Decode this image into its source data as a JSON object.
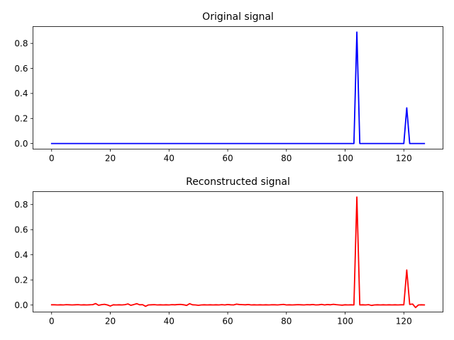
{
  "chart_data": [
    {
      "type": "line",
      "title": "Original signal",
      "xlabel": "",
      "ylabel": "",
      "xlim": [
        -6.35,
        133.35
      ],
      "ylim": [
        -0.0445,
        0.934
      ],
      "xticks": [
        0,
        20,
        40,
        60,
        80,
        100,
        120
      ],
      "yticks": [
        0.0,
        0.2,
        0.4,
        0.6,
        0.8
      ],
      "ytick_labels": [
        "0.0",
        "0.2",
        "0.4",
        "0.6",
        "0.8"
      ],
      "grid": false,
      "color": "#0000ff",
      "series": [
        {
          "x": [
            0,
            103,
            104,
            105,
            120,
            121,
            122,
            127
          ],
          "values": [
            0,
            0,
            0.89,
            0,
            0,
            0.285,
            0,
            0
          ]
        }
      ]
    },
    {
      "type": "line",
      "title": "Reconstructed signal",
      "xlabel": "",
      "ylabel": "",
      "xlim": [
        -6.35,
        133.35
      ],
      "ylim": [
        -0.0555,
        0.903
      ],
      "xticks": [
        0,
        20,
        40,
        60,
        80,
        100,
        120
      ],
      "yticks": [
        0.0,
        0.2,
        0.4,
        0.6,
        0.8
      ],
      "ytick_labels": [
        "0.0",
        "0.2",
        "0.4",
        "0.6",
        "0.8"
      ],
      "grid": false,
      "color": "#ff0000",
      "series": [
        {
          "x": [
            0,
            1,
            2,
            3,
            4,
            5,
            6,
            7,
            8,
            9,
            10,
            11,
            12,
            13,
            14,
            15,
            16,
            17,
            18,
            19,
            20,
            21,
            22,
            23,
            24,
            25,
            26,
            27,
            28,
            29,
            30,
            31,
            32,
            33,
            34,
            35,
            36,
            37,
            38,
            39,
            40,
            41,
            42,
            43,
            44,
            45,
            46,
            47,
            48,
            49,
            50,
            51,
            52,
            53,
            54,
            55,
            56,
            57,
            58,
            59,
            60,
            61,
            62,
            63,
            64,
            65,
            66,
            67,
            68,
            69,
            70,
            71,
            72,
            73,
            74,
            75,
            76,
            77,
            78,
            79,
            80,
            81,
            82,
            83,
            84,
            85,
            86,
            87,
            88,
            89,
            90,
            91,
            92,
            93,
            94,
            95,
            96,
            97,
            98,
            99,
            100,
            101,
            102,
            103,
            104,
            105,
            106,
            107,
            108,
            109,
            110,
            111,
            112,
            113,
            114,
            115,
            116,
            117,
            118,
            119,
            120,
            121,
            122,
            123,
            124,
            125,
            126,
            127
          ],
          "values": [
            0.002,
            0.002,
            0.001,
            0.002,
            0.001,
            0.003,
            0.002,
            0.001,
            0.002,
            0.003,
            0.001,
            0.002,
            0.001,
            0.002,
            0.003,
            0.012,
            -0.002,
            0.003,
            0.006,
            0.001,
            -0.008,
            0.002,
            0.001,
            0.002,
            0.001,
            0.003,
            0.009,
            -0.002,
            0.004,
            0.011,
            0.002,
            0.003,
            -0.01,
            0.001,
            0.002,
            0.003,
            0.001,
            0.002,
            0.001,
            0.002,
            0.001,
            0.003,
            0.002,
            0.004,
            0.005,
            0.002,
            -0.003,
            0.011,
            0.002,
            0.001,
            -0.002,
            0.001,
            0.002,
            0.001,
            0.002,
            0.001,
            0.002,
            0.001,
            0.003,
            0.001,
            0.004,
            0.002,
            0.001,
            0.007,
            0.004,
            0.003,
            0.002,
            0.004,
            0.001,
            0.002,
            0.001,
            0.002,
            0.001,
            0.002,
            0.001,
            0.002,
            0.002,
            0.001,
            0.003,
            0.005,
            0.001,
            0.002,
            0.001,
            0.002,
            0.003,
            0.002,
            0.001,
            0.003,
            0.002,
            0.004,
            0.001,
            0.002,
            0.005,
            0.001,
            0.004,
            0.002,
            0.006,
            0.003,
            0.001,
            -0.001,
            0.002,
            0.001,
            0.002,
            0.001,
            0.86,
            0.001,
            0.002,
            0.001,
            0.003,
            -0.003,
            0.001,
            0.002,
            0.001,
            0.002,
            0.001,
            0.002,
            0.001,
            0.002,
            0.001,
            0.002,
            0.002,
            0.279,
            0.005,
            0.008,
            -0.02,
            0.001,
            0.002,
            0.001
          ]
        }
      ]
    }
  ]
}
